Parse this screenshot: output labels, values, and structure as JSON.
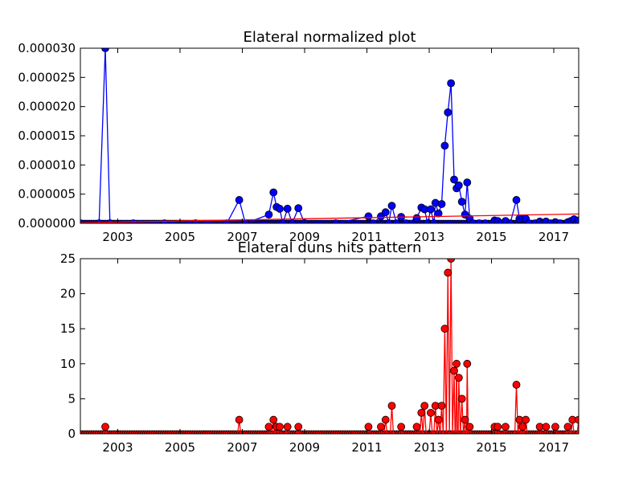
{
  "chart_data": [
    {
      "type": "line",
      "title": "Elateral normalized plot",
      "xlabel": "",
      "ylabel": "",
      "x_axis": "year (decimal)",
      "xlim": [
        2001.8,
        2017.8
      ],
      "ylim": [
        0,
        3e-05
      ],
      "xticks": [
        "2003",
        "2005",
        "2007",
        "2009",
        "2011",
        "2013",
        "2015",
        "2017"
      ],
      "yticks": [
        "0.000000",
        "0.000005",
        "0.000010",
        "0.000015",
        "0.000020",
        "0.000025",
        "0.000030"
      ],
      "grid": false,
      "legend": "none",
      "series": [
        {
          "color": "#0000ff",
          "marker": "circle",
          "points": [
            [
              2001.8,
              0
            ],
            [
              2002.4,
              0
            ],
            [
              2002.6,
              3e-05
            ],
            [
              2002.75,
              0
            ],
            [
              2003.5,
              0
            ],
            [
              2004.5,
              0
            ],
            [
              2005.5,
              0
            ],
            [
              2006.5,
              0
            ],
            [
              2006.9,
              4e-06
            ],
            [
              2007.1,
              0
            ],
            [
              2007.85,
              1.5e-06
            ],
            [
              2008.0,
              5.3e-06
            ],
            [
              2008.1,
              2.8e-06
            ],
            [
              2008.2,
              2.5e-06
            ],
            [
              2008.3,
              0
            ],
            [
              2008.45,
              2.5e-06
            ],
            [
              2008.6,
              0
            ],
            [
              2008.8,
              2.6e-06
            ],
            [
              2009.0,
              0
            ],
            [
              2010.0,
              0
            ],
            [
              2011.05,
              1.2e-06
            ],
            [
              2011.2,
              0
            ],
            [
              2011.45,
              1.2e-06
            ],
            [
              2011.6,
              1.9e-06
            ],
            [
              2011.7,
              0
            ],
            [
              2011.8,
              3e-06
            ],
            [
              2011.95,
              0
            ],
            [
              2012.1,
              1.1e-06
            ],
            [
              2012.25,
              0
            ],
            [
              2012.6,
              9e-07
            ],
            [
              2012.75,
              2.7e-06
            ],
            [
              2012.85,
              2.4e-06
            ],
            [
              2012.95,
              0
            ],
            [
              2013.05,
              2.4e-06
            ],
            [
              2013.15,
              0
            ],
            [
              2013.2,
              3.5e-06
            ],
            [
              2013.3,
              1.7e-06
            ],
            [
              2013.4,
              3.3e-06
            ],
            [
              2013.5,
              1.33e-05
            ],
            [
              2013.6,
              1.9e-05
            ],
            [
              2013.7,
              2.4e-05
            ],
            [
              2013.8,
              7.5e-06
            ],
            [
              2013.88,
              6e-06
            ],
            [
              2013.95,
              6.5e-06
            ],
            [
              2014.05,
              3.7e-06
            ],
            [
              2014.15,
              1.5e-06
            ],
            [
              2014.22,
              7e-06
            ],
            [
              2014.3,
              8e-07
            ],
            [
              2014.4,
              0
            ],
            [
              2014.6,
              0
            ],
            [
              2014.8,
              0
            ],
            [
              2015.1,
              5e-07
            ],
            [
              2015.2,
              4e-07
            ],
            [
              2015.3,
              0
            ],
            [
              2015.45,
              4e-07
            ],
            [
              2015.6,
              0
            ],
            [
              2015.8,
              4e-06
            ],
            [
              2015.9,
              8e-07
            ],
            [
              2016.0,
              8e-07
            ],
            [
              2016.1,
              8e-07
            ],
            [
              2016.2,
              0
            ],
            [
              2016.4,
              0
            ],
            [
              2016.55,
              3e-07
            ],
            [
              2016.65,
              0
            ],
            [
              2016.75,
              3e-07
            ],
            [
              2016.9,
              0
            ],
            [
              2017.05,
              2e-07
            ],
            [
              2017.2,
              0
            ],
            [
              2017.45,
              2e-07
            ],
            [
              2017.55,
              4e-07
            ],
            [
              2017.65,
              7e-07
            ],
            [
              2017.75,
              0
            ],
            [
              2017.8,
              5e-07
            ]
          ]
        },
        {
          "color": "#ff0000",
          "marker": "none",
          "kind": "trend",
          "points": [
            [
              2001.8,
              1e-07
            ],
            [
              2017.8,
              1.6e-06
            ]
          ]
        }
      ]
    },
    {
      "type": "line",
      "title": "Elateral duns hits pattern",
      "xlabel": "",
      "ylabel": "",
      "xlim": [
        2001.8,
        2017.8
      ],
      "ylim": [
        0,
        25
      ],
      "xticks": [
        "2003",
        "2005",
        "2007",
        "2009",
        "2011",
        "2013",
        "2015",
        "2017"
      ],
      "yticks": [
        "0",
        "5",
        "10",
        "15",
        "20",
        "25"
      ],
      "grid": false,
      "legend": "none",
      "series": [
        {
          "color": "#ff0000",
          "marker": "circle",
          "points": [
            [
              2002.6,
              1
            ],
            [
              2006.9,
              2
            ],
            [
              2007.85,
              1
            ],
            [
              2008.0,
              2
            ],
            [
              2008.1,
              1
            ],
            [
              2008.2,
              1
            ],
            [
              2008.45,
              1
            ],
            [
              2008.8,
              1
            ],
            [
              2011.05,
              1
            ],
            [
              2011.45,
              1
            ],
            [
              2011.6,
              2
            ],
            [
              2011.8,
              4
            ],
            [
              2012.1,
              1
            ],
            [
              2012.6,
              1
            ],
            [
              2012.75,
              3
            ],
            [
              2012.85,
              4
            ],
            [
              2013.05,
              3
            ],
            [
              2013.2,
              4
            ],
            [
              2013.3,
              2
            ],
            [
              2013.4,
              4
            ],
            [
              2013.5,
              15
            ],
            [
              2013.6,
              23
            ],
            [
              2013.7,
              25
            ],
            [
              2013.8,
              9
            ],
            [
              2013.88,
              10
            ],
            [
              2013.95,
              8
            ],
            [
              2014.05,
              5
            ],
            [
              2014.15,
              2
            ],
            [
              2014.22,
              10
            ],
            [
              2014.3,
              1
            ],
            [
              2015.1,
              1
            ],
            [
              2015.2,
              1
            ],
            [
              2015.45,
              1
            ],
            [
              2015.8,
              7
            ],
            [
              2015.9,
              2
            ],
            [
              2016.0,
              1
            ],
            [
              2016.1,
              2
            ],
            [
              2016.55,
              1
            ],
            [
              2016.75,
              1
            ],
            [
              2017.05,
              1
            ],
            [
              2017.45,
              1
            ],
            [
              2017.6,
              2
            ],
            [
              2017.8,
              2
            ]
          ]
        }
      ]
    }
  ]
}
